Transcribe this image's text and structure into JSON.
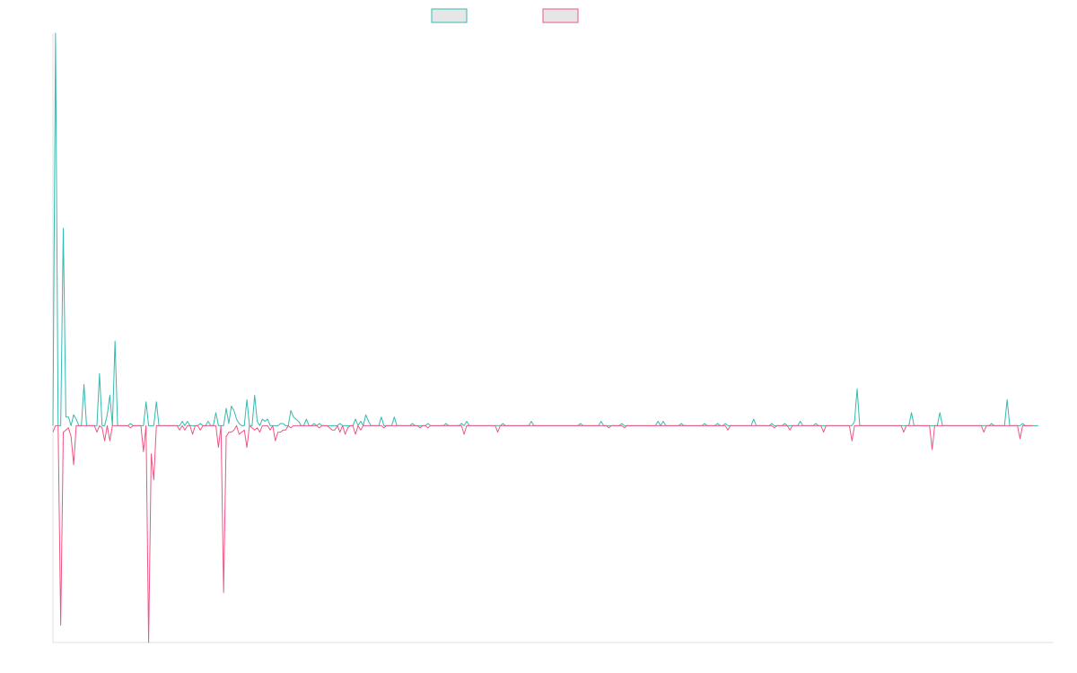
{
  "chart_data": {
    "type": "line",
    "title": "",
    "xlabel": "",
    "ylabel": "",
    "x_count": 388,
    "ylim": [
      -1,
      1.81
    ],
    "legend_position": "top-center",
    "grid": false,
    "series": [
      {
        "color": "#36b9b0",
        "values": [
          0,
          1.81,
          0,
          0,
          0.91,
          0.04,
          0.04,
          0,
          0.05,
          0.03,
          0,
          0,
          0.19,
          0,
          0,
          0,
          0,
          0,
          0.24,
          0,
          0,
          0.05,
          0.14,
          0,
          0.39,
          0,
          0,
          0,
          0,
          0,
          0.01,
          0,
          0,
          0,
          0,
          0,
          0.11,
          0,
          0,
          0,
          0.11,
          0,
          0,
          0,
          0,
          0,
          0,
          0,
          0,
          0,
          0.02,
          0,
          0.02,
          0,
          0,
          0,
          0,
          0.01,
          0,
          0,
          0.02,
          0,
          0,
          0.06,
          0,
          0,
          0,
          0.08,
          0.01,
          0.09,
          0.07,
          0.03,
          0.01,
          0,
          0,
          0.12,
          0,
          0,
          0.14,
          0.02,
          0,
          0.03,
          0.02,
          0.03,
          0,
          0,
          0,
          0,
          0.01,
          0.01,
          0,
          0,
          0.07,
          0.04,
          0.03,
          0.02,
          0,
          0,
          0.03,
          0,
          0,
          0.01,
          0,
          0.01,
          0,
          0,
          0,
          0,
          0,
          0,
          0,
          0.01,
          0,
          0,
          0,
          0,
          0,
          0.03,
          0,
          0.02,
          0,
          0.05,
          0.02,
          0,
          0,
          0,
          0,
          0.04,
          0,
          0,
          0,
          0,
          0.04,
          0,
          0,
          0,
          0,
          0,
          0,
          0.01,
          0,
          0,
          0,
          0,
          0,
          0.01,
          0,
          0,
          0,
          0,
          0,
          0,
          0.01,
          0,
          0,
          0,
          0,
          0,
          0.01,
          0,
          0.02,
          0,
          0,
          0,
          0,
          0,
          0,
          0,
          0,
          0,
          0,
          0,
          0,
          0,
          0.01,
          0,
          0,
          0,
          0,
          0,
          0,
          0,
          0,
          0,
          0,
          0.02,
          0,
          0,
          0,
          0,
          0,
          0,
          0,
          0,
          0,
          0,
          0,
          0,
          0,
          0,
          0,
          0,
          0,
          0,
          0.01,
          0,
          0,
          0,
          0,
          0,
          0,
          0,
          0.02,
          0,
          0,
          0,
          0,
          0,
          0,
          0,
          0.01,
          0,
          0,
          0,
          0,
          0,
          0,
          0,
          0,
          0,
          0,
          0,
          0,
          0,
          0.02,
          0,
          0.02,
          0,
          0,
          0,
          0,
          0,
          0,
          0.01,
          0,
          0,
          0,
          0,
          0,
          0,
          0,
          0,
          0.01,
          0,
          0,
          0,
          0,
          0.01,
          0,
          0,
          0.01,
          0,
          0,
          0,
          0,
          0,
          0,
          0,
          0,
          0,
          0,
          0.03,
          0,
          0,
          0,
          0,
          0,
          0,
          0.01,
          0,
          0,
          0,
          0,
          0.01,
          0,
          0,
          0,
          0,
          0,
          0.02,
          0,
          0,
          0,
          0,
          0,
          0.01,
          0,
          0,
          0,
          0,
          0,
          0,
          0,
          0,
          0,
          0,
          0,
          0,
          0,
          0,
          0.02,
          0.17,
          0,
          0,
          0,
          0,
          0,
          0,
          0,
          0,
          0,
          0,
          0,
          0,
          0,
          0,
          0,
          0,
          0,
          0,
          0,
          0,
          0.06,
          0,
          0,
          0,
          0,
          0,
          0,
          0,
          0,
          0,
          0,
          0.06,
          0,
          0,
          0,
          0,
          0,
          0,
          0,
          0,
          0,
          0,
          0,
          0,
          0,
          0,
          0,
          0,
          0,
          0,
          0,
          0.01,
          0,
          0,
          0,
          0,
          0,
          0.12,
          0,
          0,
          0,
          0,
          0,
          0.01,
          0,
          0,
          0,
          0,
          0,
          0
        ]
      },
      {
        "color": "#ee5682",
        "values": [
          -0.03,
          0,
          0,
          -0.92,
          -0.03,
          -0.02,
          -0.01,
          -0.05,
          -0.18,
          0,
          0,
          0,
          0,
          0,
          0,
          0,
          0,
          -0.03,
          0,
          -0.01,
          -0.07,
          0,
          -0.07,
          0,
          0,
          0,
          0,
          0,
          0,
          0,
          -0.01,
          0,
          0,
          0,
          0,
          -0.12,
          0,
          -1,
          -0.13,
          -0.25,
          0,
          0,
          0,
          0,
          0,
          0,
          0,
          0,
          0,
          -0.02,
          0,
          -0.02,
          0,
          0,
          -0.04,
          0,
          0,
          -0.02,
          0,
          0,
          0,
          0,
          0,
          0,
          -0.1,
          0,
          -0.77,
          -0.05,
          -0.03,
          -0.03,
          -0.02,
          0,
          -0.04,
          -0.03,
          -0.02,
          -0.1,
          0,
          -0.01,
          -0.02,
          -0.01,
          -0.03,
          0,
          0,
          0,
          -0.02,
          0,
          -0.07,
          -0.03,
          -0.03,
          -0.02,
          -0.02,
          0,
          -0.01,
          0,
          0,
          0,
          0,
          0,
          0,
          0,
          0,
          0,
          0,
          -0.01,
          0,
          0,
          0,
          -0.01,
          -0.02,
          -0.02,
          0,
          -0.03,
          0,
          -0.04,
          -0.01,
          0,
          0,
          -0.04,
          0,
          -0.02,
          0,
          0,
          0,
          0,
          0,
          0,
          0,
          0,
          -0.01,
          0,
          0,
          0,
          0,
          0,
          0,
          0,
          0,
          0,
          0,
          0,
          0,
          0,
          -0.01,
          0,
          0,
          -0.01,
          0,
          0,
          0,
          0,
          0,
          0,
          0,
          0,
          0,
          0,
          0,
          0,
          0,
          -0.04,
          0,
          0,
          0,
          0,
          0,
          0,
          0,
          0,
          0,
          0,
          0,
          0,
          -0.03,
          0,
          0,
          0,
          0,
          0,
          0,
          0,
          0,
          0,
          0,
          0,
          0,
          0,
          0,
          0,
          0,
          0,
          0,
          0,
          0,
          0,
          0,
          0,
          0,
          0,
          0,
          0,
          0,
          0,
          0,
          0,
          0,
          0,
          0,
          0,
          0,
          0,
          0,
          0,
          0,
          0,
          0,
          -0.01,
          0,
          0,
          0,
          0,
          0,
          -0.01,
          0,
          0,
          0,
          0,
          0,
          0,
          0,
          0,
          0,
          0,
          0,
          0,
          0,
          0,
          0,
          0,
          0,
          0,
          0,
          0,
          0,
          0,
          0,
          0,
          0,
          0,
          0,
          0,
          0,
          0,
          0,
          0,
          0,
          0,
          0,
          0,
          0,
          0,
          0,
          -0.02,
          0,
          0,
          0,
          0,
          0,
          0,
          0,
          0,
          0,
          0,
          0,
          0,
          0,
          0,
          0,
          0,
          0,
          -0.01,
          0,
          0,
          0,
          0,
          0,
          -0.02,
          0,
          0,
          0,
          0,
          0,
          0,
          0,
          0,
          0,
          0,
          0,
          0,
          -0.03,
          0,
          0,
          0,
          0,
          0,
          0,
          0,
          0,
          0,
          0,
          -0.07,
          0,
          0,
          0,
          0,
          0,
          0,
          0,
          0,
          0,
          0,
          0,
          0,
          0,
          0,
          0,
          0,
          0,
          0,
          0,
          -0.03,
          0,
          0,
          0,
          0,
          0,
          0,
          0,
          0,
          0,
          0,
          -0.11,
          0,
          0,
          0,
          0,
          0,
          0,
          0,
          0,
          0,
          0,
          0,
          0,
          0,
          0,
          0,
          0,
          0,
          0,
          0,
          -0.03,
          0,
          0,
          0,
          0,
          0,
          0,
          0,
          0,
          0,
          0,
          0,
          0,
          0,
          -0.06,
          0,
          0,
          0,
          0,
          0
        ]
      }
    ]
  }
}
